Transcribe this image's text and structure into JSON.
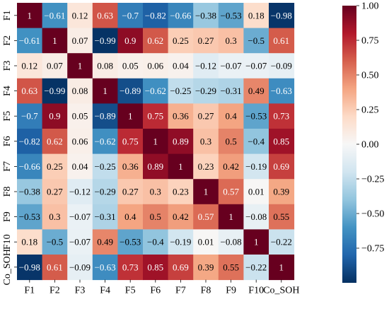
{
  "chart_data": {
    "type": "heatmap",
    "title": "",
    "xlabel": "",
    "ylabel": "",
    "x_labels": [
      "F1",
      "F2",
      "F3",
      "F4",
      "F5",
      "F6",
      "F7",
      "F8",
      "F9",
      "F10",
      "Co_SOH"
    ],
    "y_labels": [
      "F1",
      "F2",
      "F3",
      "F4",
      "F5",
      "F6",
      "F7",
      "F8",
      "F9",
      "F10",
      "Co_SOH"
    ],
    "matrix": [
      [
        1,
        -0.61,
        0.12,
        0.63,
        -0.7,
        -0.82,
        -0.66,
        -0.38,
        -0.53,
        0.18,
        -0.98
      ],
      [
        -0.61,
        1,
        0.07,
        -0.99,
        0.9,
        0.62,
        0.25,
        0.27,
        0.3,
        -0.5,
        0.61
      ],
      [
        0.12,
        0.07,
        1,
        0.08,
        0.05,
        0.06,
        0.04,
        -0.12,
        -0.07,
        -0.07,
        -0.09
      ],
      [
        0.63,
        -0.99,
        0.08,
        1,
        -0.89,
        -0.62,
        -0.25,
        -0.29,
        -0.31,
        0.49,
        -0.63
      ],
      [
        -0.7,
        0.9,
        0.05,
        -0.89,
        1,
        0.75,
        0.36,
        0.27,
        0.4,
        -0.53,
        0.73
      ],
      [
        -0.82,
        0.62,
        0.06,
        -0.62,
        0.75,
        1,
        0.89,
        0.3,
        0.5,
        -0.4,
        0.85
      ],
      [
        -0.66,
        0.25,
        0.04,
        -0.25,
        0.36,
        0.89,
        1,
        0.23,
        0.42,
        -0.19,
        0.69
      ],
      [
        -0.38,
        0.27,
        -0.12,
        -0.29,
        0.27,
        0.3,
        0.23,
        1,
        0.57,
        0.01,
        0.39
      ],
      [
        -0.53,
        0.3,
        -0.07,
        -0.31,
        0.4,
        0.5,
        0.42,
        0.57,
        1,
        -0.08,
        0.55
      ],
      [
        0.18,
        -0.5,
        -0.07,
        0.49,
        -0.53,
        -0.4,
        -0.19,
        0.01,
        -0.08,
        1,
        -0.22
      ],
      [
        -0.98,
        0.61,
        -0.09,
        -0.63,
        0.73,
        0.85,
        0.69,
        0.39,
        0.55,
        -0.22,
        1
      ]
    ],
    "vmin": -1,
    "vmax": 1,
    "colormap": "RdBu_r",
    "colorbar_ticks": [
      1.0,
      0.75,
      0.5,
      0.25,
      0.0,
      -0.25,
      -0.5,
      -0.75
    ],
    "colorbar_tick_labels": [
      "1.00",
      "0.75",
      "0.50",
      "0.25",
      "0.00",
      "−0.25",
      "−0.50",
      "−0.75"
    ],
    "colorbar_position": "right",
    "annotations": true,
    "grid": false,
    "colors": {
      "stops": [
        "#053061",
        "#2166ac",
        "#4393c3",
        "#92c5de",
        "#d1e5f0",
        "#f7f7f7",
        "#fddbc7",
        "#f4a582",
        "#d6604d",
        "#b2182b",
        "#67001f"
      ],
      "text_dark": "#000000",
      "text_light": "#ffffff"
    }
  }
}
